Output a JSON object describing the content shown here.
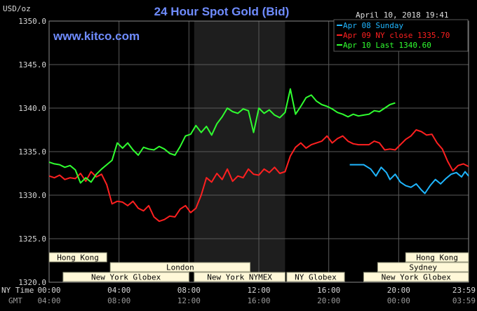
{
  "title": "24 Hour Spot Gold (Bid)",
  "unit_label": "USD/oz",
  "watermark": "www.kitco.com",
  "timestamp": "April 10, 2018 19:41",
  "row_labels": {
    "ny_time": "NY Time",
    "gmt": "GMT"
  },
  "colors": {
    "background": "#000000",
    "grid": "#5a5a5a",
    "axis_text": "#d8d8d8",
    "title": "#6f8cff",
    "session_fill": "#1e1e1e",
    "band_fill": "#fff8d8",
    "series_sunday": "#1fb6ff",
    "series_ny_close": "#ff2020",
    "series_last": "#30ff30"
  },
  "legend": [
    {
      "label": "Apr 08 Sunday",
      "color": "#1fb6ff"
    },
    {
      "label": "Apr 09 NY close 1335.70",
      "color": "#ff2020"
    },
    {
      "label": "Apr 10 Last 1340.60",
      "color": "#30ff30"
    }
  ],
  "sessions": [
    {
      "label": "Hong Kong",
      "row": 1,
      "start_hour": 0,
      "end_hour": 3.3
    },
    {
      "label": "London",
      "row": 2,
      "start_hour": 3.5,
      "end_hour": 11.5
    },
    {
      "label": "New York Globex",
      "row": 3,
      "start_hour": 0.8,
      "end_hour": 8
    },
    {
      "label": "New York NYMEX",
      "row": 3,
      "start_hour": 8.3,
      "end_hour": 13.5
    },
    {
      "label": "NY Globex",
      "row": 3,
      "start_hour": 13.6,
      "end_hour": 16.9
    },
    {
      "label": "Hong Kong",
      "row": 1,
      "start_hour": 20.4,
      "end_hour": 24
    },
    {
      "label": "Sydney",
      "row": 2,
      "start_hour": 18.8,
      "end_hour": 24
    },
    {
      "label": "New York Globex",
      "row": 3,
      "start_hour": 18.0,
      "end_hour": 24
    }
  ],
  "chart_data": {
    "type": "line",
    "title": "24 Hour Spot Gold (Bid)",
    "ylabel": "USD/oz",
    "ylim": [
      1320,
      1350
    ],
    "xlim": [
      0,
      24
    ],
    "yticks": [
      {
        "value": 1320,
        "label": "1320.0"
      },
      {
        "value": 1325,
        "label": "1325.0"
      },
      {
        "value": 1330,
        "label": "1330.0"
      },
      {
        "value": 1335,
        "label": "1335.0"
      },
      {
        "value": 1340,
        "label": "1340.0"
      },
      {
        "value": 1345,
        "label": "1345.0"
      },
      {
        "value": 1350,
        "label": "1350.0"
      }
    ],
    "xticks": [
      {
        "value": 0,
        "ny": "00:00",
        "gmt": "04:00"
      },
      {
        "value": 4,
        "ny": "04:00",
        "gmt": "08:00"
      },
      {
        "value": 8,
        "ny": "08:00",
        "gmt": "12:00"
      },
      {
        "value": 12,
        "ny": "12:00",
        "gmt": "16:00"
      },
      {
        "value": 16,
        "ny": "16:00",
        "gmt": "20:00"
      },
      {
        "value": 20,
        "ny": "20:00",
        "gmt": "00:00"
      },
      {
        "value": 24,
        "ny": "23:59",
        "gmt": "03:59"
      }
    ],
    "shaded_region": [
      8.3,
      13.5
    ],
    "grid": true,
    "legend_position": "top-right",
    "series": [
      {
        "name": "Apr 08 Sunday",
        "color": "#1fb6ff",
        "x": [
          17.2,
          17.6,
          18.0,
          18.4,
          18.7,
          19.0,
          19.3,
          19.5,
          19.8,
          20.1,
          20.4,
          20.7,
          21.0,
          21.3,
          21.5,
          21.8,
          22.1,
          22.4,
          22.7,
          23.0,
          23.3,
          23.6,
          23.8,
          24.0
        ],
        "y": [
          1333.5,
          1333.5,
          1333.5,
          1333.0,
          1332.2,
          1333.2,
          1332.6,
          1331.8,
          1332.4,
          1331.5,
          1331.1,
          1330.9,
          1331.3,
          1330.6,
          1330.2,
          1331.1,
          1331.8,
          1331.3,
          1331.9,
          1332.4,
          1332.6,
          1332.1,
          1332.7,
          1332.2
        ]
      },
      {
        "name": "Apr 09 NY close 1335.70",
        "color": "#ff2020",
        "x": [
          0.0,
          0.3,
          0.6,
          0.9,
          1.2,
          1.5,
          1.8,
          2.1,
          2.4,
          2.7,
          3.0,
          3.3,
          3.6,
          3.9,
          4.2,
          4.5,
          4.8,
          5.1,
          5.4,
          5.7,
          6.0,
          6.3,
          6.6,
          6.9,
          7.2,
          7.5,
          7.8,
          8.1,
          8.4,
          8.7,
          9.0,
          9.3,
          9.6,
          9.9,
          10.2,
          10.5,
          10.8,
          11.1,
          11.4,
          11.7,
          12.0,
          12.3,
          12.6,
          12.9,
          13.2,
          13.5,
          13.8,
          14.1,
          14.4,
          14.7,
          15.0,
          15.3,
          15.6,
          15.9,
          16.2,
          16.5,
          16.8,
          17.1,
          17.4,
          17.7,
          18.0,
          18.3,
          18.6,
          18.9,
          19.2,
          19.5,
          19.8,
          20.1,
          20.4,
          20.7,
          21.0,
          21.3,
          21.6,
          21.9,
          22.2,
          22.5,
          22.8,
          23.1,
          23.4,
          23.7,
          24.0
        ],
        "y": [
          1332.2,
          1332.0,
          1332.3,
          1331.8,
          1332.0,
          1331.9,
          1332.5,
          1331.6,
          1332.7,
          1332.1,
          1332.4,
          1331.2,
          1329.0,
          1329.3,
          1329.2,
          1328.8,
          1329.3,
          1328.5,
          1328.2,
          1328.8,
          1327.5,
          1327.0,
          1327.2,
          1327.6,
          1327.5,
          1328.4,
          1328.8,
          1328.0,
          1328.5,
          1330.0,
          1332.0,
          1331.5,
          1332.5,
          1331.8,
          1333.0,
          1331.6,
          1332.2,
          1332.0,
          1333.0,
          1332.4,
          1332.3,
          1333.0,
          1332.6,
          1333.2,
          1332.5,
          1332.7,
          1334.5,
          1335.5,
          1336.0,
          1335.4,
          1335.8,
          1336.0,
          1336.2,
          1336.8,
          1336.0,
          1336.5,
          1336.8,
          1336.2,
          1335.9,
          1335.8,
          1335.8,
          1335.8,
          1336.2,
          1336.0,
          1335.2,
          1335.3,
          1335.2,
          1335.8,
          1336.4,
          1336.8,
          1337.5,
          1337.3,
          1336.9,
          1337.0,
          1336.0,
          1335.3,
          1333.9,
          1332.8,
          1333.4,
          1333.6,
          1333.3
        ]
      },
      {
        "name": "Apr 10 Last 1340.60",
        "color": "#30ff30",
        "x": [
          0.0,
          0.3,
          0.6,
          0.9,
          1.2,
          1.5,
          1.8,
          2.1,
          2.4,
          2.7,
          3.0,
          3.3,
          3.6,
          3.9,
          4.2,
          4.5,
          4.8,
          5.1,
          5.4,
          5.7,
          6.0,
          6.3,
          6.6,
          6.9,
          7.2,
          7.5,
          7.8,
          8.1,
          8.4,
          8.7,
          9.0,
          9.3,
          9.6,
          9.9,
          10.2,
          10.5,
          10.8,
          11.1,
          11.4,
          11.7,
          12.0,
          12.3,
          12.6,
          12.9,
          13.2,
          13.5,
          13.8,
          14.1,
          14.4,
          14.7,
          15.0,
          15.3,
          15.6,
          15.9,
          16.2,
          16.5,
          16.8,
          17.1,
          17.4,
          17.7,
          18.0,
          18.3,
          18.6,
          18.9,
          19.2,
          19.5,
          19.8
        ],
        "y": [
          1333.8,
          1333.6,
          1333.5,
          1333.2,
          1333.4,
          1332.9,
          1331.4,
          1332.0,
          1331.5,
          1332.4,
          1333.0,
          1333.5,
          1334.0,
          1336.0,
          1335.4,
          1336.0,
          1335.2,
          1334.6,
          1335.5,
          1335.3,
          1335.2,
          1335.6,
          1335.3,
          1334.8,
          1334.6,
          1335.6,
          1336.8,
          1337.0,
          1338.0,
          1337.2,
          1337.9,
          1336.9,
          1338.2,
          1339.0,
          1340.0,
          1339.6,
          1339.4,
          1339.9,
          1339.7,
          1337.2,
          1340.0,
          1339.4,
          1339.8,
          1339.2,
          1338.9,
          1339.5,
          1342.2,
          1339.3,
          1340.2,
          1341.2,
          1341.5,
          1340.8,
          1340.4,
          1340.2,
          1339.9,
          1339.5,
          1339.3,
          1339.0,
          1339.3,
          1339.1,
          1339.2,
          1339.3,
          1339.7,
          1339.6,
          1340.0,
          1340.4,
          1340.6
        ]
      }
    ]
  }
}
